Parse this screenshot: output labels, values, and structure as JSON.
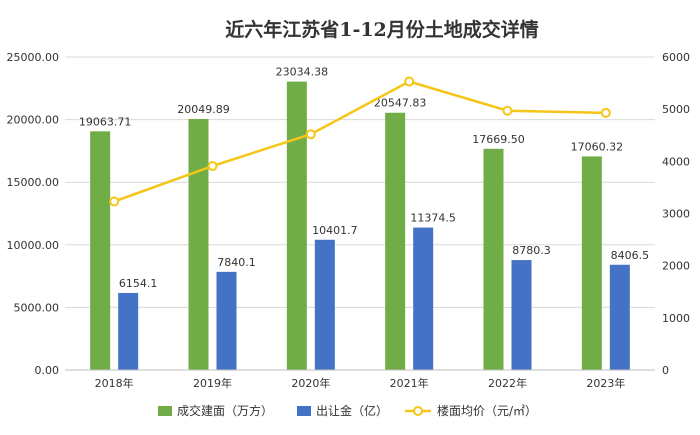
{
  "chart_data": {
    "type": "bar",
    "title": "近六年江苏省1-12月份土地成交详情",
    "categories": [
      "2018年",
      "2019年",
      "2020年",
      "2021年",
      "2022年",
      "2023年"
    ],
    "series": [
      {
        "name": "成交建面（万方）",
        "kind": "bar",
        "axis": "left",
        "color": "#70ad47",
        "values": [
          19063.71,
          20049.89,
          23034.38,
          20547.83,
          17669.5,
          17060.32
        ],
        "labels": [
          "19063.71",
          "20049.89",
          "23034.38",
          "20547.83",
          "17669.50",
          "17060.32"
        ]
      },
      {
        "name": "出让金（亿）",
        "kind": "bar",
        "axis": "left",
        "color": "#4472c4",
        "values": [
          6154.1,
          7840.1,
          10401.7,
          11374.5,
          8780.3,
          8406.5
        ],
        "labels": [
          "6154.1",
          "7840.1",
          "10401.7",
          "11374.5",
          "8780.3",
          "8406.5"
        ]
      },
      {
        "name": "楼面均价（元/㎡）",
        "kind": "line",
        "axis": "right",
        "color": "#f5c518",
        "values": [
          3230,
          3910,
          4520,
          5530,
          4970,
          4930
        ]
      }
    ],
    "y_left": {
      "min": 0,
      "max": 25000,
      "step": 5000,
      "ticks": [
        "0.00",
        "5000.00",
        "10000.00",
        "15000.00",
        "20000.00",
        "25000.00"
      ]
    },
    "y_right": {
      "min": 0,
      "max": 6000,
      "step": 1000,
      "ticks": [
        "0",
        "1000",
        "2000",
        "3000",
        "4000",
        "5000",
        "6000"
      ]
    },
    "grid": true,
    "legend_position": "bottom"
  }
}
